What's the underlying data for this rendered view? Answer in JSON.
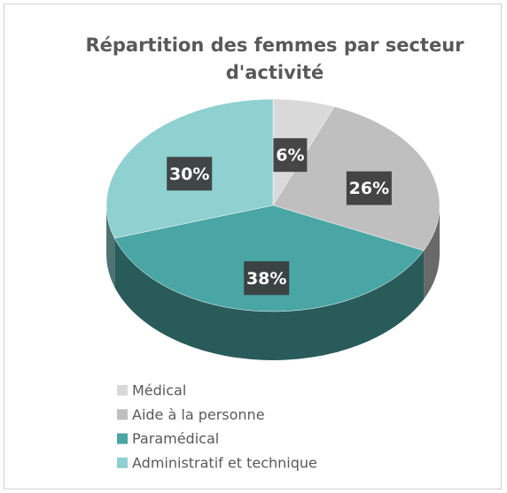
{
  "chart_data": {
    "type": "pie",
    "title": "Répartition des femmes par secteur d'activité",
    "categories": [
      "Médical",
      "Aide à la personne",
      "Paramédical",
      "Administratif et technique"
    ],
    "values": [
      6,
      26,
      38,
      30
    ],
    "value_labels": [
      "6%",
      "26%",
      "38%",
      "30%"
    ],
    "colors": [
      "#d9d9d9",
      "#bfbfbf",
      "#4aa5a5",
      "#8fd0d0"
    ],
    "legend": "bottom"
  }
}
